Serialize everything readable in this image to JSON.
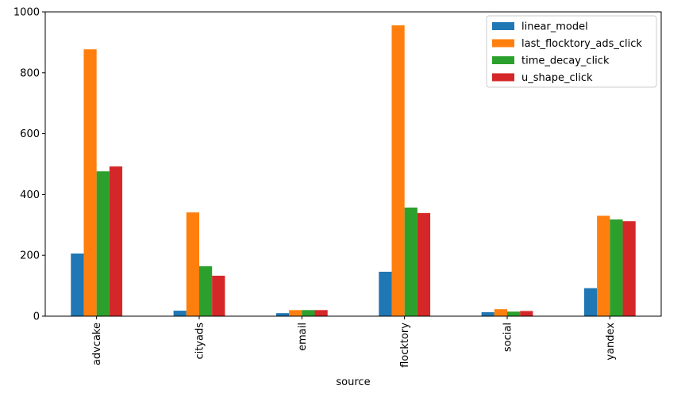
{
  "chart_data": {
    "type": "bar",
    "xlabel": "source",
    "ylabel": "",
    "title": "",
    "categories": [
      "advcake",
      "cityads",
      "email",
      "flocktory",
      "social",
      "yandex"
    ],
    "ylim": [
      0,
      1000
    ],
    "yticks": [
      0,
      200,
      400,
      600,
      800,
      1000
    ],
    "grid": false,
    "legend_position": "top-right",
    "series": [
      {
        "name": "linear_model",
        "color": "#1f77b4",
        "values": [
          206,
          18,
          10,
          146,
          13,
          92
        ]
      },
      {
        "name": "last_flocktory_ads_click",
        "color": "#ff7f0e",
        "values": [
          877,
          341,
          20,
          956,
          23,
          330
        ]
      },
      {
        "name": "time_decay_click",
        "color": "#2ca02c",
        "values": [
          476,
          164,
          20,
          357,
          15,
          318
        ]
      },
      {
        "name": "u_shape_click",
        "color": "#d62728",
        "values": [
          492,
          133,
          20,
          339,
          17,
          312
        ]
      }
    ]
  }
}
